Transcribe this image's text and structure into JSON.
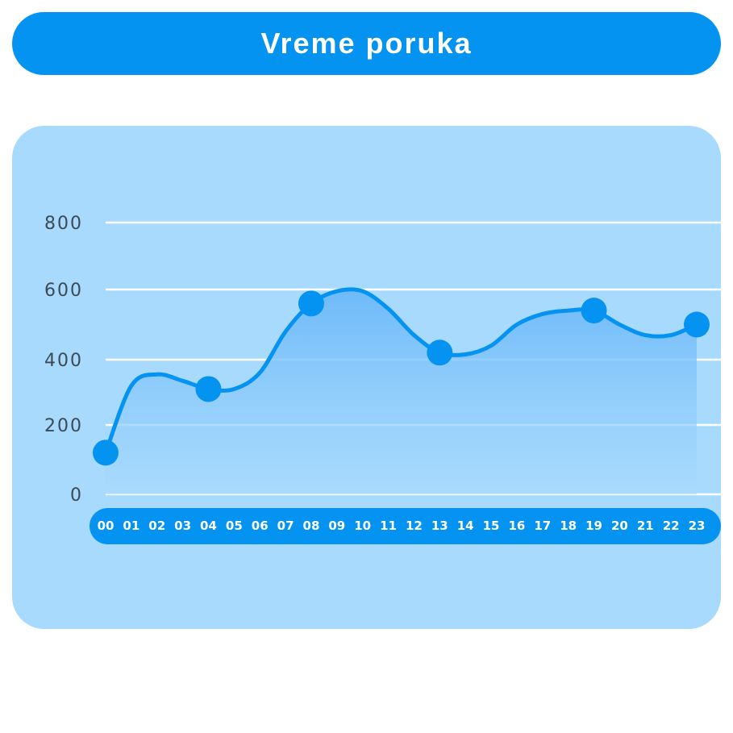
{
  "title": "Vreme poruka",
  "colors": {
    "accent": "#0593f2",
    "panel": "#a8dafd",
    "area_top": "#6ab8f9",
    "grid": "#ffffff",
    "tick_text": "#3c4a55"
  },
  "chart_data": {
    "type": "line",
    "title": "Vreme poruka",
    "xlabel": "",
    "ylabel": "",
    "categories": [
      "00",
      "01",
      "02",
      "03",
      "04",
      "05",
      "06",
      "07",
      "08",
      "09",
      "10",
      "11",
      "12",
      "13",
      "14",
      "15",
      "16",
      "17",
      "18",
      "19",
      "20",
      "21",
      "22",
      "23"
    ],
    "y_ticks": [
      "800",
      "600",
      "400",
      "200",
      "0"
    ],
    "ylim": [
      0,
      800
    ],
    "grid": true,
    "smooth": true,
    "fill_area": true,
    "series": [
      {
        "values": [
          120,
          320,
          355,
          335,
          310,
          310,
          360,
          480,
          560,
          595,
          595,
          545,
          470,
          420,
          415,
          440,
          500,
          530,
          540,
          540,
          500,
          470,
          470,
          500
        ],
        "markers": [
          0,
          4,
          8,
          13,
          19,
          23
        ]
      }
    ]
  }
}
